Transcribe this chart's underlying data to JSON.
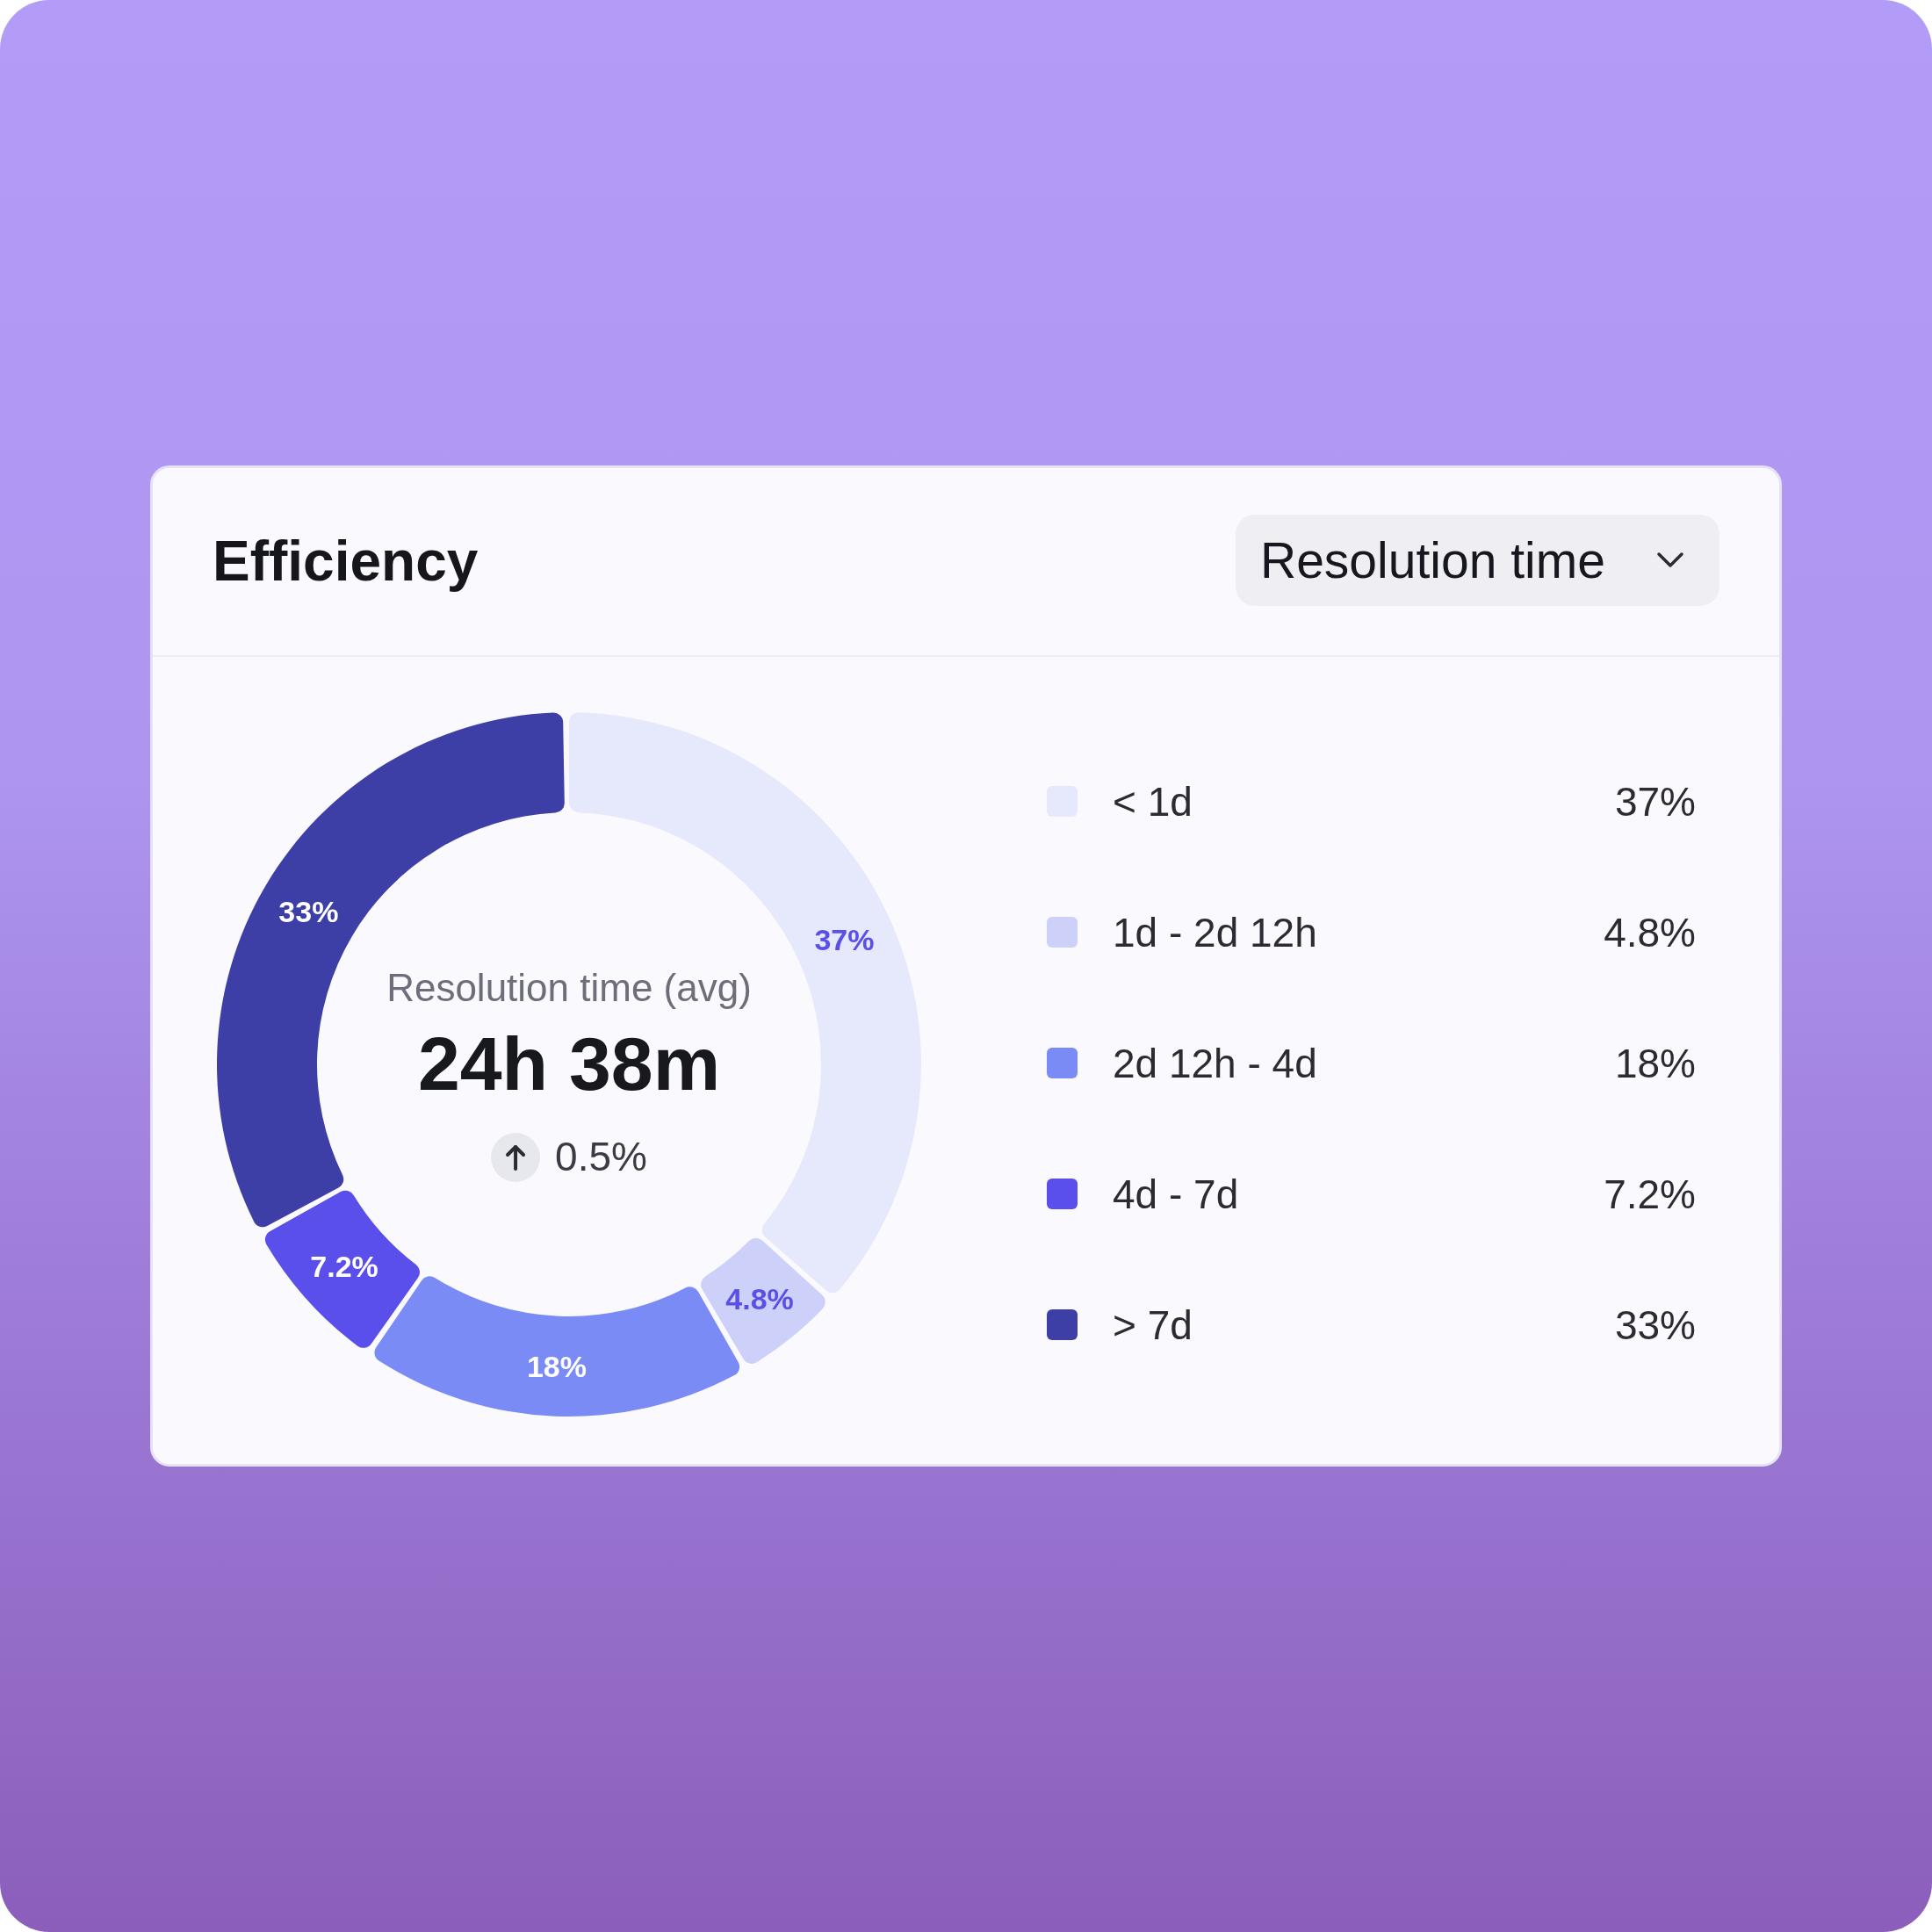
{
  "chart_data": {
    "type": "donut",
    "title": "Efficiency",
    "categories": [
      "< 1d",
      "1d - 2d 12h",
      "2d 12h - 4d",
      "4d - 7d",
      "> 7d"
    ],
    "values": [
      37,
      4.8,
      18,
      7.2,
      33
    ],
    "value_labels": [
      "37%",
      "4.8%",
      "18%",
      "7.2%",
      "33%"
    ],
    "colors": [
      "#e6e8fc",
      "#cdd1fa",
      "#7b8bf6",
      "#5b4feb",
      "#3d3ea6"
    ],
    "legend": "right",
    "annotations": [
      "Resolution time",
      "Resolution time (avg)",
      "24h 38m",
      "0.5%"
    ]
  }
}
